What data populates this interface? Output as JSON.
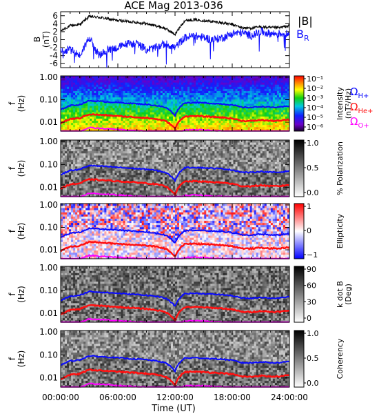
{
  "title": "ACE Mag 2013-036",
  "xlabel": "Time (UT)",
  "xticks": [
    "00:00:00",
    "06:00:00",
    "12:00:00",
    "18:00:00",
    "24:00:00"
  ],
  "xlim_hours": [
    0,
    24
  ],
  "colors": {
    "B_total": "#000000",
    "B_R": "#1010ff",
    "H": "#0a0aff",
    "He": "#ff1010",
    "O": "#ff00ff"
  },
  "chart_data": [
    {
      "type": "line",
      "panel": "magnetic-field",
      "ylabel": "B\n(nT)",
      "ylim": [
        -7,
        7
      ],
      "yticks": [
        "6",
        "4",
        "2",
        "0",
        "-2",
        "-4",
        "-6"
      ],
      "legend": [
        "|B|",
        "B_R"
      ],
      "x": [
        0,
        1,
        2,
        3,
        4,
        5,
        6,
        7,
        8,
        9,
        10,
        11,
        12,
        13,
        14,
        15,
        16,
        17,
        18,
        19,
        20,
        21,
        22,
        23,
        24
      ],
      "series": [
        {
          "name": "|B|",
          "values": [
            2.2,
            3.5,
            3.8,
            5.8,
            5.6,
            5.2,
            4.8,
            4.6,
            4.3,
            4.0,
            3.5,
            2.8,
            1.3,
            4.8,
            5.0,
            4.8,
            4.5,
            4.2,
            3.8,
            3.0,
            2.9,
            3.2,
            3.0,
            3.0,
            3.5
          ]
        },
        {
          "name": "B_R",
          "values": [
            -3.0,
            -2.5,
            -4.0,
            0.5,
            -4.0,
            -2.5,
            -2.0,
            -1.0,
            -1.0,
            -2.5,
            -2.0,
            -1.0,
            -2.0,
            0.5,
            1.0,
            0.5,
            0.0,
            0.5,
            1.5,
            1.8,
            1.0,
            2.0,
            1.5,
            1.5,
            1.5
          ]
        }
      ]
    },
    {
      "type": "heatmap",
      "panel": "intensity-spectrogram",
      "ylabel": "f\n(Hz)",
      "ylim": [
        0.004,
        1.0
      ],
      "yscale": "log",
      "yticks": [
        "1.00",
        "0.10",
        "0.01"
      ],
      "colorbar": {
        "label": "Intensity\n(nT²/Hz)",
        "ticks": [
          "10⁻¹",
          "10⁻²",
          "10⁻³",
          "10⁻⁴",
          "10⁻⁵",
          "10⁻⁶"
        ]
      }
    },
    {
      "type": "heatmap",
      "panel": "polarization",
      "ylabel": "f\n(Hz)",
      "yscale": "log",
      "yticks": [
        "1.00",
        "0.10",
        "0.01"
      ],
      "colorbar": {
        "label": "% Polarization",
        "ticks": [
          "1.0",
          "0.5",
          "0.0"
        ]
      }
    },
    {
      "type": "heatmap",
      "panel": "ellipticity",
      "ylabel": "f\n(Hz)",
      "yscale": "log",
      "yticks": [
        "1.00",
        "0.10",
        "0.01"
      ],
      "colorbar": {
        "label": "Ellipticity",
        "ticks": [
          "1",
          "0",
          "−1"
        ]
      }
    },
    {
      "type": "heatmap",
      "panel": "k-dot-b",
      "ylabel": "f\n(Hz)",
      "yscale": "log",
      "yticks": [
        "1.00",
        "0.10",
        "0.01"
      ],
      "colorbar": {
        "label": "k dot B\n(Deg)",
        "ticks": [
          "90",
          "60",
          "30",
          "0"
        ]
      }
    },
    {
      "type": "heatmap",
      "panel": "coherency",
      "ylabel": "f\n(Hz)",
      "yscale": "log",
      "yticks": [
        "1.00",
        "0.10",
        "0.01"
      ],
      "colorbar": {
        "label": "Coherency",
        "ticks": [
          "1.0",
          "0.5",
          "0.0"
        ]
      }
    }
  ],
  "gyrofrequency_lines": {
    "legend": [
      "Ω_H+",
      "Ω_He+",
      "Ω_O+"
    ],
    "x": [
      0,
      1,
      2,
      3,
      4,
      5,
      6,
      7,
      8,
      9,
      10,
      11,
      12,
      13,
      14,
      15,
      16,
      17,
      18,
      19,
      20,
      21,
      22,
      23,
      24
    ],
    "H_values": [
      0.035,
      0.055,
      0.06,
      0.09,
      0.085,
      0.08,
      0.075,
      0.07,
      0.066,
      0.062,
      0.055,
      0.045,
      0.02,
      0.072,
      0.075,
      0.072,
      0.068,
      0.065,
      0.058,
      0.046,
      0.045,
      0.05,
      0.046,
      0.046,
      0.053
    ]
  }
}
